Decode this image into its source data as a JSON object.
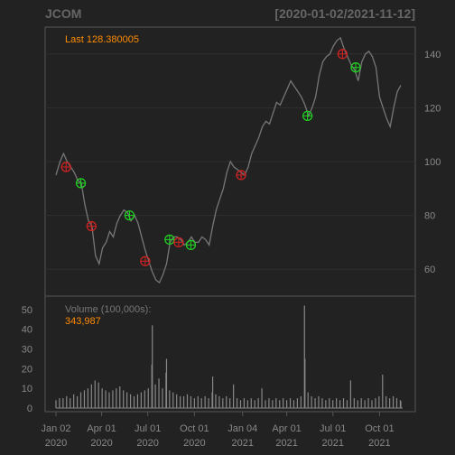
{
  "chart_data": {
    "type": "line",
    "title": "JCOM",
    "date_range": "[2020-01-02/2021-11-12]",
    "last_label": "Last 128.380005",
    "price_ylim": [
      50,
      150
    ],
    "price_ticks": [
      60,
      80,
      100,
      120,
      140
    ],
    "volume_label": "Volume (100,000s):",
    "volume_last": "343,987",
    "volume_ylim": [
      0,
      55
    ],
    "volume_ticks": [
      0,
      10,
      20,
      30,
      40,
      50
    ],
    "x_ticks": [
      {
        "line1": "Jan 02",
        "line2": "2020",
        "date": "2020-01-02"
      },
      {
        "line1": "Apr 01",
        "line2": "2020",
        "date": "2020-04-01"
      },
      {
        "line1": "Jul 01",
        "line2": "2020",
        "date": "2020-07-01"
      },
      {
        "line1": "Oct 01",
        "line2": "2020",
        "date": "2020-10-01"
      },
      {
        "line1": "Jan 04",
        "line2": "2021",
        "date": "2021-01-04"
      },
      {
        "line1": "Apr 01",
        "line2": "2021",
        "date": "2021-04-01"
      },
      {
        "line1": "Jul 01",
        "line2": "2021",
        "date": "2021-07-01"
      },
      {
        "line1": "Oct 01",
        "line2": "2021",
        "date": "2021-10-01"
      }
    ],
    "price_series": [
      [
        "2020-01-02",
        95
      ],
      [
        "2020-01-10",
        100
      ],
      [
        "2020-01-17",
        103
      ],
      [
        "2020-01-24",
        100
      ],
      [
        "2020-01-31",
        98
      ],
      [
        "2020-02-07",
        96
      ],
      [
        "2020-02-14",
        93
      ],
      [
        "2020-02-21",
        92
      ],
      [
        "2020-02-28",
        84
      ],
      [
        "2020-03-06",
        78
      ],
      [
        "2020-03-13",
        76
      ],
      [
        "2020-03-20",
        65
      ],
      [
        "2020-03-27",
        62
      ],
      [
        "2020-04-03",
        68
      ],
      [
        "2020-04-10",
        70
      ],
      [
        "2020-04-17",
        74
      ],
      [
        "2020-04-24",
        72
      ],
      [
        "2020-05-01",
        77
      ],
      [
        "2020-05-08",
        80
      ],
      [
        "2020-05-15",
        82
      ],
      [
        "2020-05-22",
        81
      ],
      [
        "2020-05-29",
        78
      ],
      [
        "2020-06-05",
        80
      ],
      [
        "2020-06-12",
        77
      ],
      [
        "2020-06-19",
        72
      ],
      [
        "2020-06-26",
        67
      ],
      [
        "2020-07-03",
        63
      ],
      [
        "2020-07-10",
        59
      ],
      [
        "2020-07-17",
        56
      ],
      [
        "2020-07-24",
        55
      ],
      [
        "2020-07-31",
        58
      ],
      [
        "2020-08-07",
        62
      ],
      [
        "2020-08-14",
        70
      ],
      [
        "2020-08-21",
        72
      ],
      [
        "2020-08-28",
        72
      ],
      [
        "2020-09-04",
        71
      ],
      [
        "2020-09-11",
        69
      ],
      [
        "2020-09-18",
        70
      ],
      [
        "2020-09-25",
        72
      ],
      [
        "2020-10-02",
        70
      ],
      [
        "2020-10-09",
        70
      ],
      [
        "2020-10-16",
        72
      ],
      [
        "2020-10-23",
        71
      ],
      [
        "2020-10-30",
        69
      ],
      [
        "2020-11-06",
        76
      ],
      [
        "2020-11-13",
        82
      ],
      [
        "2020-11-20",
        86
      ],
      [
        "2020-11-27",
        90
      ],
      [
        "2020-12-04",
        96
      ],
      [
        "2020-12-11",
        100
      ],
      [
        "2020-12-18",
        98
      ],
      [
        "2020-12-25",
        97
      ],
      [
        "2021-01-01",
        96
      ],
      [
        "2021-01-08",
        95
      ],
      [
        "2021-01-15",
        98
      ],
      [
        "2021-01-22",
        103
      ],
      [
        "2021-01-29",
        106
      ],
      [
        "2021-02-05",
        109
      ],
      [
        "2021-02-12",
        113
      ],
      [
        "2021-02-19",
        115
      ],
      [
        "2021-02-26",
        114
      ],
      [
        "2021-03-05",
        118
      ],
      [
        "2021-03-12",
        122
      ],
      [
        "2021-03-19",
        121
      ],
      [
        "2021-03-26",
        124
      ],
      [
        "2021-04-02",
        127
      ],
      [
        "2021-04-09",
        130
      ],
      [
        "2021-04-16",
        128
      ],
      [
        "2021-04-23",
        126
      ],
      [
        "2021-04-30",
        124
      ],
      [
        "2021-05-07",
        121
      ],
      [
        "2021-05-14",
        117
      ],
      [
        "2021-05-21",
        120
      ],
      [
        "2021-05-28",
        124
      ],
      [
        "2021-06-04",
        132
      ],
      [
        "2021-06-11",
        137
      ],
      [
        "2021-06-18",
        139
      ],
      [
        "2021-06-25",
        140
      ],
      [
        "2021-07-02",
        143
      ],
      [
        "2021-07-09",
        145
      ],
      [
        "2021-07-16",
        146
      ],
      [
        "2021-07-23",
        142
      ],
      [
        "2021-07-30",
        139
      ],
      [
        "2021-08-06",
        136
      ],
      [
        "2021-08-13",
        134
      ],
      [
        "2021-08-20",
        130
      ],
      [
        "2021-08-27",
        137
      ],
      [
        "2021-09-03",
        140
      ],
      [
        "2021-09-10",
        141
      ],
      [
        "2021-09-17",
        139
      ],
      [
        "2021-09-24",
        135
      ],
      [
        "2021-10-01",
        124
      ],
      [
        "2021-10-08",
        120
      ],
      [
        "2021-10-15",
        116
      ],
      [
        "2021-10-22",
        113
      ],
      [
        "2021-10-29",
        120
      ],
      [
        "2021-11-05",
        126
      ],
      [
        "2021-11-12",
        128.38
      ]
    ],
    "buy_markers": [
      [
        "2020-02-20",
        92
      ],
      [
        "2020-05-26",
        80
      ],
      [
        "2020-08-13",
        71
      ],
      [
        "2020-09-24",
        69
      ],
      [
        "2021-05-12",
        117
      ],
      [
        "2021-08-15",
        135
      ]
    ],
    "sell_markers": [
      [
        "2020-01-22",
        98
      ],
      [
        "2020-03-12",
        76
      ],
      [
        "2020-06-26",
        63
      ],
      [
        "2020-08-31",
        70
      ],
      [
        "2021-01-01",
        95
      ],
      [
        "2021-07-20",
        140
      ]
    ],
    "volume_series": [
      [
        "2020-01-02",
        4
      ],
      [
        "2020-01-09",
        5
      ],
      [
        "2020-01-16",
        5
      ],
      [
        "2020-01-23",
        6
      ],
      [
        "2020-01-30",
        5
      ],
      [
        "2020-02-06",
        7
      ],
      [
        "2020-02-13",
        6
      ],
      [
        "2020-02-20",
        8
      ],
      [
        "2020-02-27",
        9
      ],
      [
        "2020-03-05",
        10
      ],
      [
        "2020-03-12",
        12
      ],
      [
        "2020-03-19",
        14
      ],
      [
        "2020-03-26",
        13
      ],
      [
        "2020-04-02",
        10
      ],
      [
        "2020-04-09",
        9
      ],
      [
        "2020-04-16",
        8
      ],
      [
        "2020-04-23",
        9
      ],
      [
        "2020-04-30",
        10
      ],
      [
        "2020-05-07",
        11
      ],
      [
        "2020-05-14",
        9
      ],
      [
        "2020-05-21",
        8
      ],
      [
        "2020-05-28",
        7
      ],
      [
        "2020-06-04",
        6
      ],
      [
        "2020-06-11",
        7
      ],
      [
        "2020-06-18",
        8
      ],
      [
        "2020-06-25",
        9
      ],
      [
        "2020-07-02",
        10
      ],
      [
        "2020-07-09",
        22
      ],
      [
        "2020-07-10",
        42
      ],
      [
        "2020-07-16",
        12
      ],
      [
        "2020-07-23",
        15
      ],
      [
        "2020-07-30",
        10
      ],
      [
        "2020-08-06",
        18
      ],
      [
        "2020-08-07",
        25
      ],
      [
        "2020-08-13",
        9
      ],
      [
        "2020-08-20",
        8
      ],
      [
        "2020-08-27",
        7
      ],
      [
        "2020-09-03",
        6
      ],
      [
        "2020-09-10",
        6
      ],
      [
        "2020-09-17",
        7
      ],
      [
        "2020-09-24",
        6
      ],
      [
        "2020-10-01",
        5
      ],
      [
        "2020-10-08",
        6
      ],
      [
        "2020-10-15",
        5
      ],
      [
        "2020-10-22",
        6
      ],
      [
        "2020-10-29",
        5
      ],
      [
        "2020-11-05",
        8
      ],
      [
        "2020-11-06",
        16
      ],
      [
        "2020-11-12",
        7
      ],
      [
        "2020-11-19",
        6
      ],
      [
        "2020-11-26",
        5
      ],
      [
        "2020-12-03",
        6
      ],
      [
        "2020-12-10",
        5
      ],
      [
        "2020-12-17",
        12
      ],
      [
        "2020-12-24",
        5
      ],
      [
        "2020-12-31",
        4
      ],
      [
        "2021-01-07",
        5
      ],
      [
        "2021-01-14",
        4
      ],
      [
        "2021-01-21",
        5
      ],
      [
        "2021-01-28",
        4
      ],
      [
        "2021-02-04",
        5
      ],
      [
        "2021-02-11",
        10
      ],
      [
        "2021-02-18",
        4
      ],
      [
        "2021-02-25",
        5
      ],
      [
        "2021-03-04",
        4
      ],
      [
        "2021-03-11",
        5
      ],
      [
        "2021-03-18",
        4
      ],
      [
        "2021-03-25",
        5
      ],
      [
        "2021-04-01",
        4
      ],
      [
        "2021-04-08",
        5
      ],
      [
        "2021-04-15",
        4
      ],
      [
        "2021-04-22",
        5
      ],
      [
        "2021-04-29",
        6
      ],
      [
        "2021-05-06",
        52
      ],
      [
        "2021-05-07",
        25
      ],
      [
        "2021-05-13",
        8
      ],
      [
        "2021-05-20",
        6
      ],
      [
        "2021-05-27",
        5
      ],
      [
        "2021-06-03",
        6
      ],
      [
        "2021-06-10",
        5
      ],
      [
        "2021-06-17",
        4
      ],
      [
        "2021-06-24",
        5
      ],
      [
        "2021-07-01",
        4
      ],
      [
        "2021-07-08",
        5
      ],
      [
        "2021-07-15",
        4
      ],
      [
        "2021-07-22",
        5
      ],
      [
        "2021-07-29",
        4
      ],
      [
        "2021-08-05",
        14
      ],
      [
        "2021-08-12",
        5
      ],
      [
        "2021-08-19",
        4
      ],
      [
        "2021-08-26",
        5
      ],
      [
        "2021-09-02",
        4
      ],
      [
        "2021-09-09",
        5
      ],
      [
        "2021-09-16",
        4
      ],
      [
        "2021-09-23",
        5
      ],
      [
        "2021-09-30",
        6
      ],
      [
        "2021-10-07",
        17
      ],
      [
        "2021-10-14",
        6
      ],
      [
        "2021-10-21",
        5
      ],
      [
        "2021-10-28",
        6
      ],
      [
        "2021-11-04",
        5
      ],
      [
        "2021-11-11",
        4
      ],
      [
        "2021-11-12",
        3.44
      ]
    ],
    "colors": {
      "background": "#222222",
      "line": "#777777",
      "grid": "#2f2f2f",
      "axis": "#555555",
      "last_label": "#ff8c00",
      "buy": "#22cc22",
      "sell": "#cc2222",
      "volume": "#888888",
      "volume_label": "#777777"
    }
  }
}
